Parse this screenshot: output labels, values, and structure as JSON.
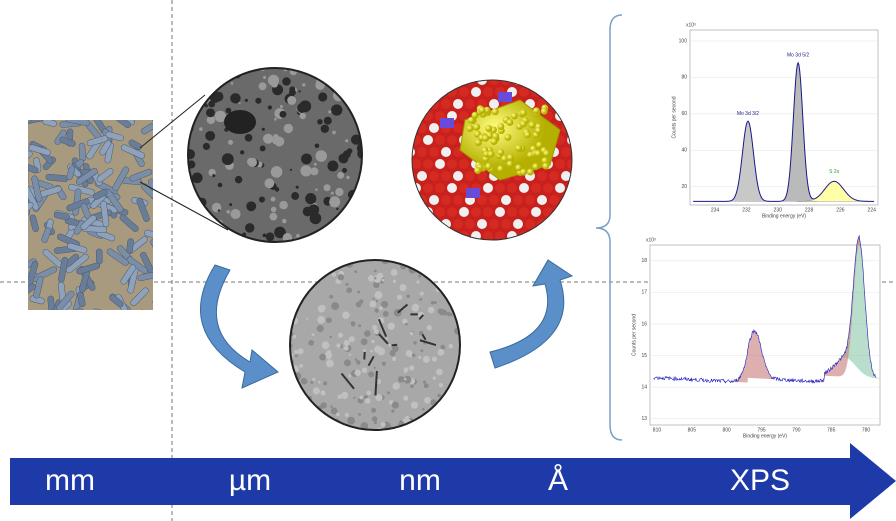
{
  "scale_bar": {
    "labels": [
      "mm",
      "µm",
      "nm",
      "Å",
      "XPS"
    ]
  },
  "xps_top": {
    "y_unit": "x10³",
    "y_label": "Counts per second",
    "x_label": "Binding energy (eV)",
    "yticks": [
      20,
      40,
      60,
      80,
      100
    ],
    "xticks": [
      234,
      232,
      230,
      228,
      226,
      224
    ],
    "peaks": [
      "Mo 3d 3/2",
      "Mo 3d 5/2",
      "S 2s"
    ]
  },
  "xps_bottom": {
    "y_unit": "x10³",
    "y_label": "Counts per second",
    "x_label": "Binding energy (eV)",
    "yticks": [
      13,
      14,
      15,
      16,
      17,
      18
    ],
    "xticks": [
      810,
      805,
      800,
      795,
      790,
      785,
      780
    ]
  }
}
